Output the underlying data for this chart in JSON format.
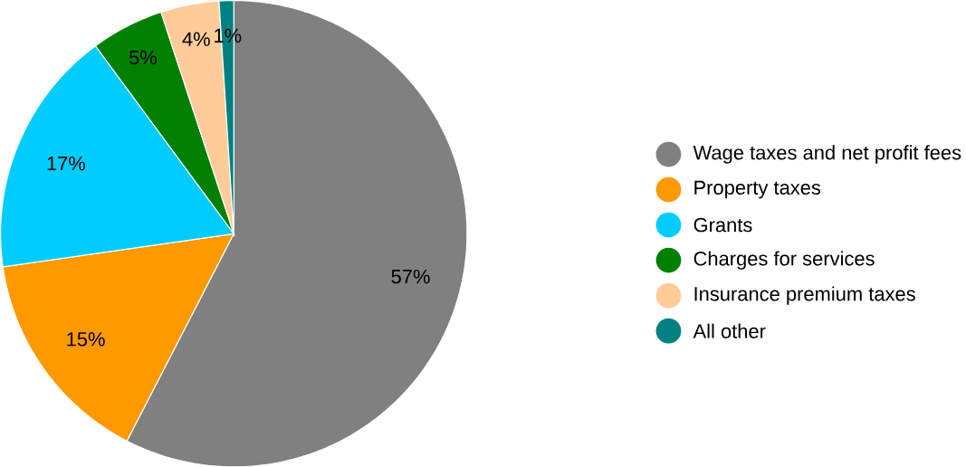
{
  "chart_data": {
    "type": "pie",
    "categories": [
      "Wage taxes and net profit fees",
      "Property taxes",
      "Grants",
      "Charges for services",
      "Insurance premium taxes",
      "All other"
    ],
    "values": [
      57,
      15,
      17,
      5,
      4,
      1
    ],
    "colors": [
      "#808080",
      "#ff9900",
      "#00ccff",
      "#008000",
      "#ffcc99",
      "#008080"
    ],
    "value_labels": [
      "57%",
      "15%",
      "17%",
      "5%",
      "4%",
      "1%"
    ],
    "legend": "right"
  }
}
